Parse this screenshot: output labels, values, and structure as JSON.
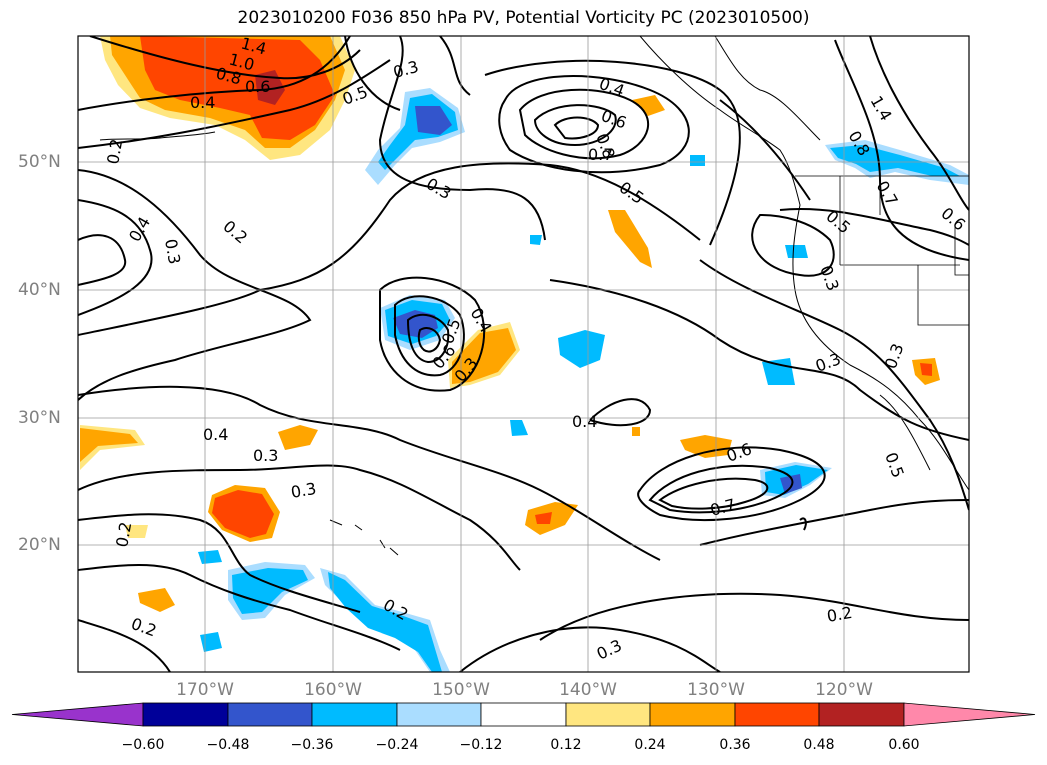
{
  "title": "2023010200 F036 850 hPa PV, Potential Vorticity PC (2023010500)",
  "lat_labels": [
    "50°N",
    "40°N",
    "30°N",
    "20°N"
  ],
  "lon_labels": [
    "170°W",
    "160°W",
    "150°W",
    "140°W",
    "130°W",
    "120°W"
  ],
  "contour_labels": [
    "1.4",
    "1.0",
    "0.8",
    "0.6",
    "0.4",
    "0.5",
    "0.2",
    "0.4",
    "0.3",
    "0.2",
    "0.3",
    "0.4",
    "0.6",
    "0.8",
    "0.7",
    "0.5",
    "0.4",
    "0.5",
    "0.3",
    "0.6",
    "0.4",
    "0.3",
    "0.3",
    "0.4",
    "0.3",
    "0.3",
    "0.6",
    "0.7",
    "0.5",
    "0.3",
    "0.2",
    "0.2",
    "0.3",
    "0.2",
    "0.2",
    "0.3",
    "1.4",
    "0.8",
    "0.7",
    "0.6",
    "0.5"
  ],
  "colorbar": {
    "ticks": [
      "−0.60",
      "−0.48",
      "−0.36",
      "−0.24",
      "−0.12",
      "0.12",
      "0.24",
      "0.36",
      "0.48",
      "0.60"
    ],
    "colors": [
      "#9933cc",
      "#000099",
      "#3355cc",
      "#00bbff",
      "#aaddff",
      "#ffffff",
      "#ffe680",
      "#ffa500",
      "#ff4500",
      "#b22222",
      "#ff88aa"
    ]
  }
}
